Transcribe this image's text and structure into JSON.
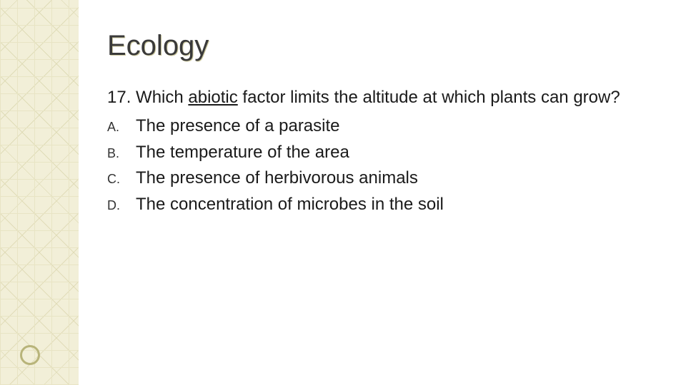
{
  "slide": {
    "title": "Ecology",
    "question": {
      "number": "17.",
      "prefix": " Which ",
      "underlined": "abiotic",
      "suffix": "  factor limits the altitude at which plants can grow?"
    },
    "options": [
      {
        "letter": "A.",
        "text": "The presence of a parasite"
      },
      {
        "letter": "B.",
        "text": "The temperature of the area"
      },
      {
        "letter": "C.",
        "text": "The presence of herbivorous animals"
      },
      {
        "letter": "D.",
        "text": "The concentration of microbes in the soil"
      }
    ],
    "style": {
      "pattern_bg": "#f2efd8",
      "pattern_line1": "#e8e4c4",
      "pattern_line2": "#e0dcb8",
      "circle_border": "#b8b47a",
      "title_color": "#3a3a3a",
      "title_shadow": "#cfcba0",
      "text_color": "#1a1a1a",
      "title_fontsize": 40,
      "body_fontsize": 24,
      "letter_fontsize": 18,
      "background": "#ffffff"
    }
  }
}
